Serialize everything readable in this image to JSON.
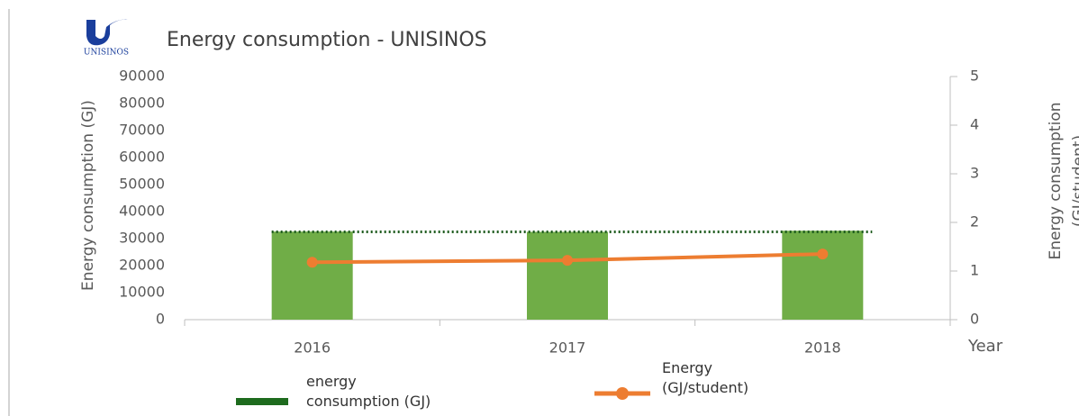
{
  "chart_data": {
    "type": "bar_line",
    "title": "Energy consumption - UNISINOS",
    "logo_text": "UNISINOS",
    "y_label": "Energy consumption (GJ)",
    "y2_label": "Energy consumption (GJ/student)",
    "x_label": "Year",
    "categories": [
      "2016",
      "2017",
      "2018"
    ],
    "series": [
      {
        "name": "energy consumption (GJ)",
        "type": "bar",
        "color": "#70ad47",
        "legend_color": "#1e6b1e",
        "values": [
          32600,
          32500,
          32900
        ]
      },
      {
        "name": "Energy (GJ/student)",
        "type": "line",
        "axis": "y2",
        "color": "#ed7d31",
        "values": [
          1.18,
          1.22,
          1.35
        ]
      }
    ],
    "reference_line": {
      "value": 32500,
      "color": "#1e5b1e"
    },
    "ylim": [
      0,
      90000
    ],
    "yticks": [
      0,
      10000,
      20000,
      30000,
      40000,
      50000,
      60000,
      70000,
      80000,
      90000
    ],
    "y2lim": [
      0,
      5
    ],
    "y2ticks": [
      0,
      1,
      2,
      3,
      4,
      5
    ]
  }
}
